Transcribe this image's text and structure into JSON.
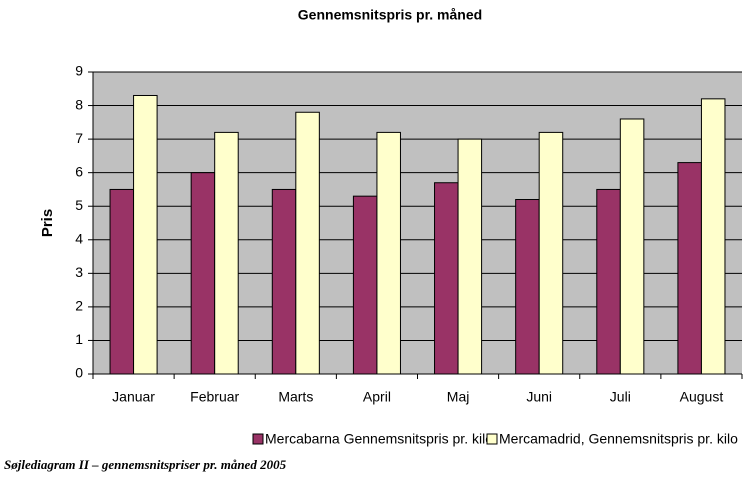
{
  "chart_data": {
    "type": "bar",
    "title": "Gennemsnitspris pr. måned",
    "y_label": "Pris",
    "categories": [
      "Januar",
      "Februar",
      "Marts",
      "April",
      "Maj",
      "Juni",
      "Juli",
      "August"
    ],
    "series": [
      {
        "name": "Mercabarna Gennemsnitspris pr. kilo",
        "color": "#993366",
        "values": [
          5.5,
          6.0,
          5.5,
          5.3,
          5.7,
          5.2,
          5.5,
          6.3
        ]
      },
      {
        "name": "Mercamadrid, Gennemsnitspris pr. kilo",
        "color": "#ffffcc",
        "values": [
          8.3,
          7.2,
          7.8,
          7.2,
          7.0,
          7.2,
          7.6,
          8.2
        ]
      }
    ],
    "ylim": [
      0,
      9
    ],
    "yticks": [
      0,
      1,
      2,
      3,
      4,
      5,
      6,
      7,
      8,
      9
    ],
    "grid": true,
    "legend": "bottom",
    "plot_background": "#c0c0c0",
    "caption": "Søjlediagram II – gennemsnitspriser pr. måned 2005"
  }
}
